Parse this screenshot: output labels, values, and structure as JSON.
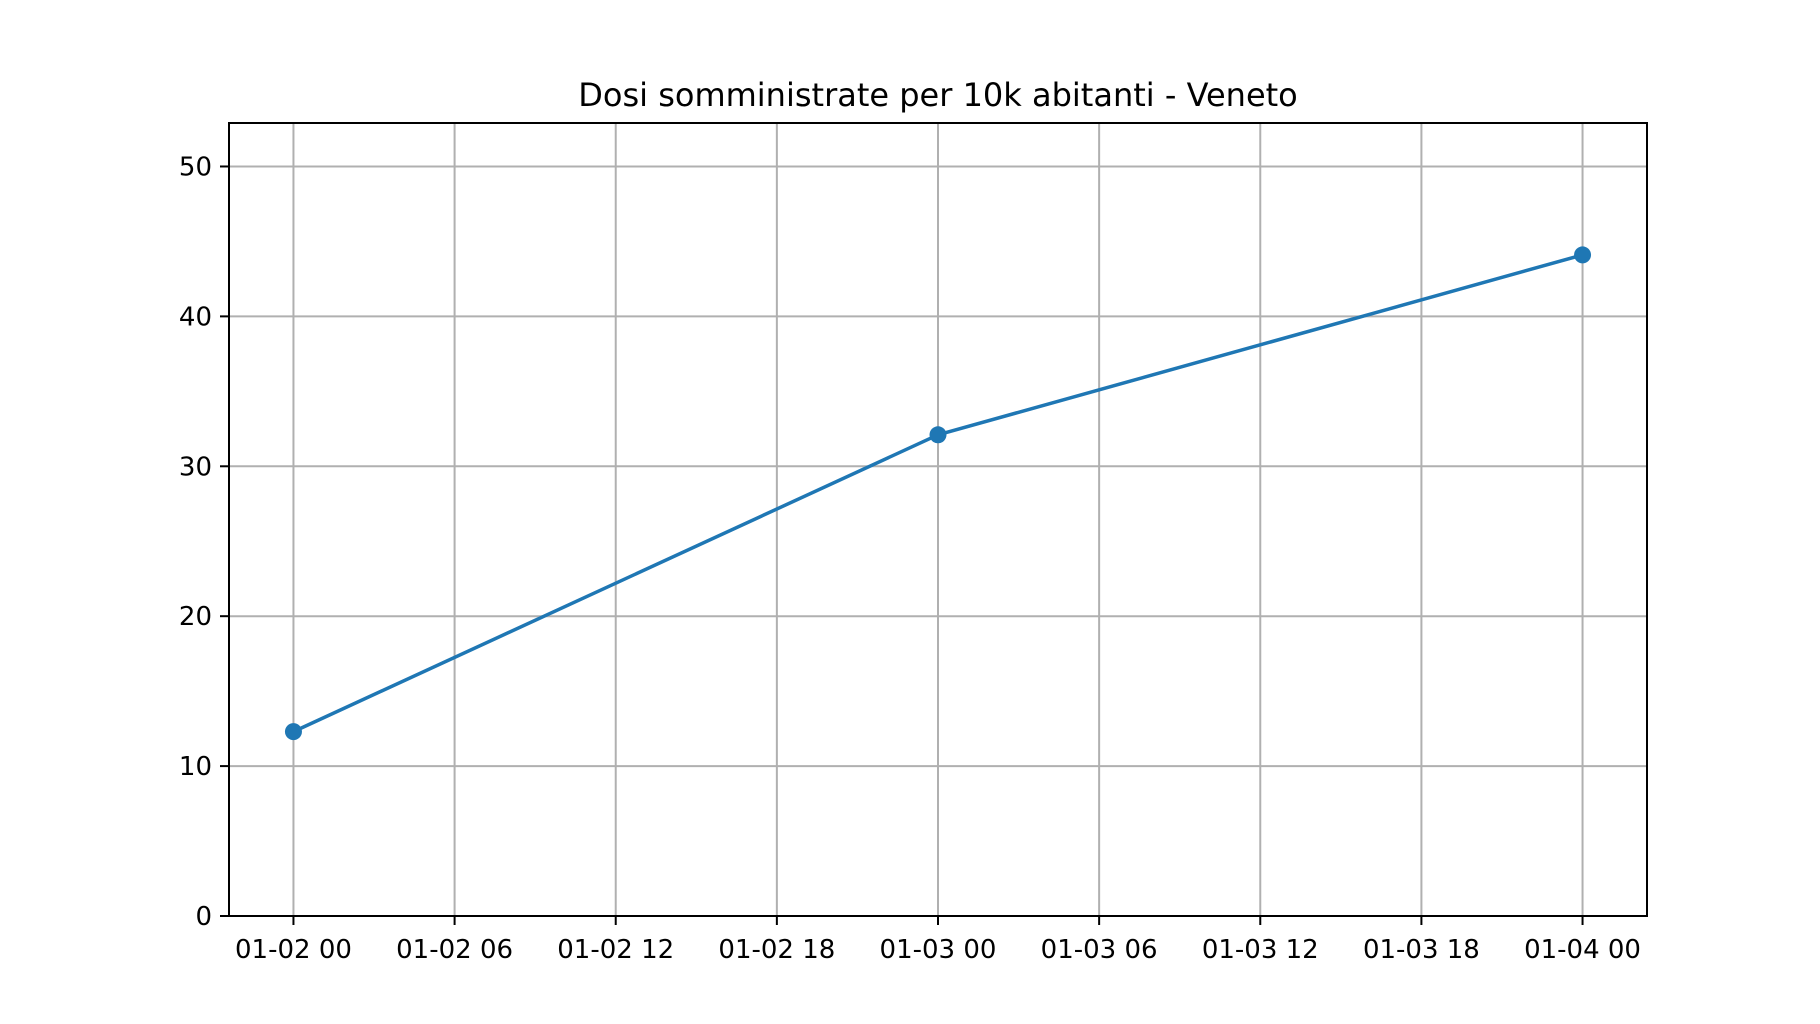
{
  "chart_data": {
    "type": "line",
    "title": "Dosi somministrate per 10k abitanti - Veneto",
    "xlabel": "",
    "ylabel": "",
    "x_ticks": [
      "01-02 00",
      "01-02 06",
      "01-02 12",
      "01-02 18",
      "01-03 00",
      "01-03 06",
      "01-03 12",
      "01-03 18",
      "01-04 00"
    ],
    "y_ticks": [
      0,
      10,
      20,
      30,
      40,
      50
    ],
    "xlim": [
      "01-01 21:36",
      "01-04 02:24"
    ],
    "ylim": [
      0,
      52.9
    ],
    "grid": true,
    "series": [
      {
        "x": [
          "01-02 00",
          "01-03 00",
          "01-04 00"
        ],
        "values": [
          12.3,
          32.1,
          44.1
        ],
        "color": "#1f77b4",
        "marker": "circle"
      }
    ]
  }
}
